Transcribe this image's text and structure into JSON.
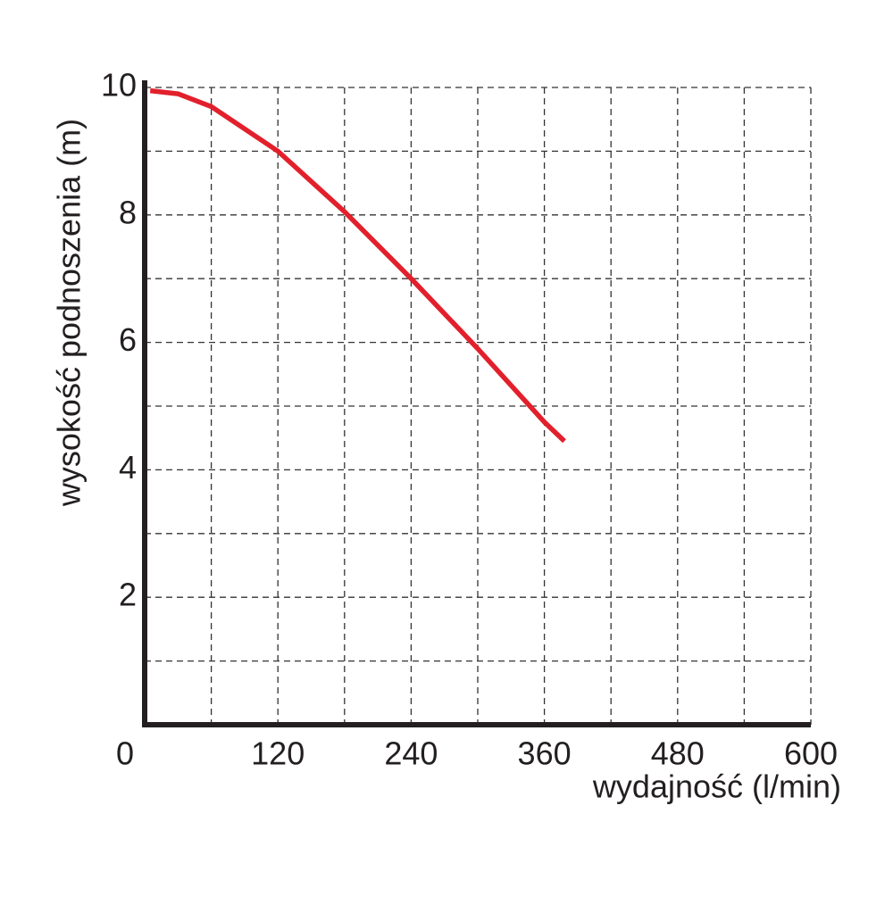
{
  "chart_data": {
    "type": "line",
    "xlabel": "wydajność (l/min)",
    "ylabel": "wysokość podnoszenia (m)",
    "x": [
      5,
      30,
      60,
      120,
      180,
      240,
      300,
      360,
      378
    ],
    "series": [
      {
        "color": "#e2202c",
        "values": [
          9.95,
          9.9,
          9.7,
          9.0,
          8.05,
          7.0,
          5.9,
          4.75,
          4.45
        ]
      }
    ],
    "xlim": [
      0,
      600
    ],
    "ylim": [
      0,
      10
    ],
    "xticks": [
      0,
      120,
      240,
      360,
      480,
      600
    ],
    "yticks": [
      2,
      4,
      6,
      8,
      10
    ],
    "xminorticks": [
      60,
      180,
      300,
      420,
      540
    ],
    "yminorticks": [
      1,
      3,
      5,
      7,
      9
    ],
    "grid": true
  }
}
